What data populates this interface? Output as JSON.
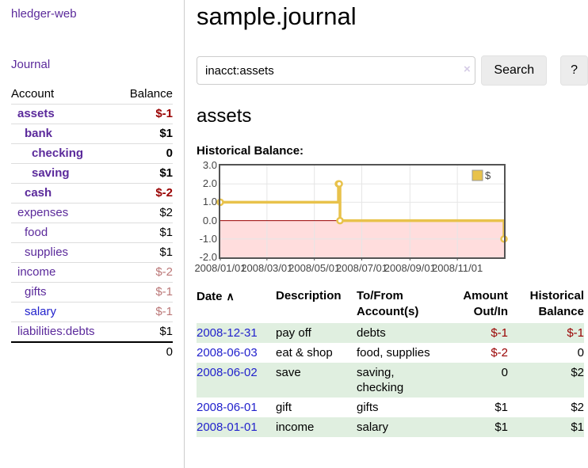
{
  "app": {
    "title": "hledger-web"
  },
  "sidebar": {
    "journal_label": "Journal",
    "accounts": {
      "headers": {
        "account": "Account",
        "balance": "Balance"
      },
      "rows": [
        {
          "name": "assets",
          "balance": "$-1",
          "indent": 0,
          "bold": true,
          "amount_class": "neg",
          "link_class": "purple"
        },
        {
          "name": "bank",
          "balance": "$1",
          "indent": 1,
          "bold": true,
          "amount_class": "",
          "link_class": "purple"
        },
        {
          "name": "checking",
          "balance": "0",
          "indent": 2,
          "bold": true,
          "amount_class": "",
          "link_class": "purple"
        },
        {
          "name": "saving",
          "balance": "$1",
          "indent": 2,
          "bold": true,
          "amount_class": "",
          "link_class": "purple"
        },
        {
          "name": "cash",
          "balance": "$-2",
          "indent": 1,
          "bold": true,
          "amount_class": "neg",
          "link_class": "purple"
        },
        {
          "name": "expenses",
          "balance": "$2",
          "indent": 0,
          "bold": false,
          "amount_class": "",
          "link_class": "purple"
        },
        {
          "name": "food",
          "balance": "$1",
          "indent": 1,
          "bold": false,
          "amount_class": "",
          "link_class": "purple"
        },
        {
          "name": "supplies",
          "balance": "$1",
          "indent": 1,
          "bold": false,
          "amount_class": "",
          "link_class": "purple"
        },
        {
          "name": "income",
          "balance": "$-2",
          "indent": 0,
          "bold": false,
          "amount_class": "negmuted",
          "link_class": "purple"
        },
        {
          "name": "gifts",
          "balance": "$-1",
          "indent": 1,
          "bold": false,
          "amount_class": "negmuted",
          "link_class": "purple"
        },
        {
          "name": "salary",
          "balance": "$-1",
          "indent": 1,
          "bold": false,
          "amount_class": "negmuted",
          "link_class": "blue"
        },
        {
          "name": "liabilities:debts",
          "balance": "$1",
          "indent": 0,
          "bold": false,
          "amount_class": "",
          "link_class": "purple"
        }
      ],
      "total": "0"
    }
  },
  "main": {
    "title": "sample.journal",
    "search": {
      "value": "inacct:assets",
      "clear_icon": "×",
      "search_label": "Search",
      "help_label": "?"
    },
    "account_heading": "assets"
  },
  "chart_data": {
    "type": "line",
    "title": "Historical Balance:",
    "series": [
      {
        "name": "$",
        "points": [
          [
            "2008-01-01",
            1
          ],
          [
            "2008-06-01",
            2
          ],
          [
            "2008-06-02",
            2
          ],
          [
            "2008-06-03",
            0
          ],
          [
            "2008-12-31",
            -1
          ]
        ]
      }
    ],
    "step": true,
    "xlim": [
      "2008-01-01",
      "2008-12-31"
    ],
    "ylim": [
      -2,
      3
    ],
    "x_ticks": [
      "2008/01/01",
      "2008/03/01",
      "2008/05/01",
      "2008/07/01",
      "2008/09/01",
      "2008/11/01"
    ],
    "y_ticks": [
      "3.0",
      "2.0",
      "1.0",
      "0.0",
      "-1.0",
      "-2.0"
    ],
    "grid": true,
    "legend_position": "top-right",
    "colors": {
      "line": "#e8c24b",
      "marker_fill": "#ffffff",
      "negative_region": "#ffdddd",
      "zero_line": "#990000",
      "gridline": "#e6e6e6",
      "border": "#545454",
      "tick_text": "#444444"
    }
  },
  "register": {
    "headers": {
      "date": "Date",
      "description": "Description",
      "accounts": "To/From Account(s)",
      "amount": "Amount Out/In",
      "balance": "Historical Balance"
    },
    "sort_icon": "∧",
    "rows": [
      {
        "date": "2008-12-31",
        "description": "pay off",
        "accounts": "debts",
        "amount": "$-1",
        "amount_class": "neg",
        "balance": "$-1",
        "balance_class": "neg",
        "shaded": true
      },
      {
        "date": "2008-06-03",
        "description": "eat & shop",
        "accounts": "food, supplies",
        "amount": "$-2",
        "amount_class": "neg",
        "balance": "0",
        "balance_class": "",
        "shaded": false
      },
      {
        "date": "2008-06-02",
        "description": "save",
        "accounts": "saving, checking",
        "amount": "0",
        "amount_class": "",
        "balance": "$2",
        "balance_class": "",
        "shaded": true
      },
      {
        "date": "2008-06-01",
        "description": "gift",
        "accounts": "gifts",
        "amount": "$1",
        "amount_class": "",
        "balance": "$2",
        "balance_class": "",
        "shaded": false
      },
      {
        "date": "2008-01-01",
        "description": "income",
        "accounts": "salary",
        "amount": "$1",
        "amount_class": "",
        "balance": "$1",
        "balance_class": "",
        "shaded": true
      }
    ]
  },
  "colors": {
    "link_purple": "#5b2a9b",
    "link_blue": "#2222cc",
    "negative_strong": "#990000",
    "negative_muted": "#bb7777",
    "row_shade_green": "#e0efe0",
    "sidebar_border": "#cccccc"
  }
}
